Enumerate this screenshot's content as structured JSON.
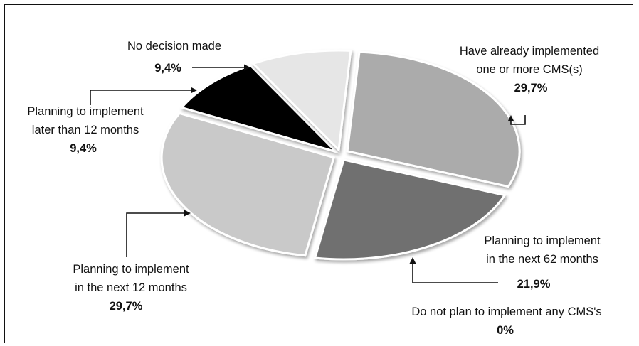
{
  "chart_data": {
    "type": "pie",
    "title": "",
    "slices": [
      {
        "label_lines": [
          "Have already implemented",
          "one or more CMS(s)"
        ],
        "value_label": "29,7%",
        "value": 29.7,
        "color": "#ababab"
      },
      {
        "label_lines": [
          "Planning to implement",
          "in the next 62 months"
        ],
        "value_label": "21,9%",
        "value": 21.9,
        "color": "#707070"
      },
      {
        "label_lines": [
          "Do not plan to implement any CMS's"
        ],
        "value_label": "0%",
        "value": 0,
        "color": "#ffffff"
      },
      {
        "label_lines": [
          "Planning to implement",
          "in the next 12 months"
        ],
        "value_label": "29,7%",
        "value": 29.7,
        "color": "#c9c9c9"
      },
      {
        "label_lines": [
          "Planning to implement",
          "later than 12 months"
        ],
        "value_label": "9,4%",
        "value": 9.4,
        "color": "#050505"
      },
      {
        "label_lines": [
          "No decision made"
        ],
        "value_label": "9,4%",
        "value": 9.4,
        "color": "#e6e6e6"
      }
    ]
  }
}
